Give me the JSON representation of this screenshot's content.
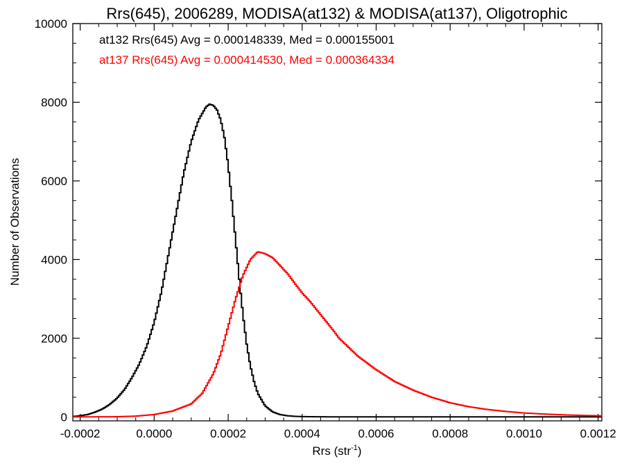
{
  "chart_data": {
    "type": "line",
    "title": "Rrs(645), 2006289, MODISA(at132) & MODISA(at137), Oligotrophic",
    "xlabel": "Rrs (str",
    "xlabel_sup": "-1",
    "xlabel_close": ")",
    "ylabel": "Number of Observations",
    "xlim": [
      -0.00022,
      0.00121
    ],
    "ylim": [
      -100,
      10000
    ],
    "xticks": [
      "-0.0002",
      "0.0000",
      "0.0002",
      "0.0004",
      "0.0006",
      "0.0008",
      "0.0010",
      "0.0012"
    ],
    "xtick_values": [
      -0.0002,
      0.0,
      0.0002,
      0.0004,
      0.0006,
      0.0008,
      0.001,
      0.0012
    ],
    "yticks": [
      "0",
      "2000",
      "4000",
      "6000",
      "8000",
      "10000"
    ],
    "ytick_values": [
      0,
      2000,
      4000,
      6000,
      8000,
      10000
    ],
    "grid": false,
    "annotations": [
      {
        "text": "at132 Rrs(645) Avg = 0.000148339, Med = 0.000155001",
        "color": "#000000"
      },
      {
        "text": "at137 Rrs(645) Avg = 0.000414530, Med = 0.000364334",
        "color": "#ff0000"
      }
    ],
    "series": [
      {
        "color": "#000000",
        "x": [
          -0.00022,
          -0.0002,
          -0.00018,
          -0.00016,
          -0.00014,
          -0.00012,
          -0.0001,
          -8e-05,
          -6e-05,
          -4e-05,
          -2e-05,
          0.0,
          2e-05,
          4e-05,
          6e-05,
          8e-05,
          0.0001,
          0.00012,
          0.00014,
          0.00015,
          0.00016,
          0.00017,
          0.00018,
          0.00019,
          0.0002,
          0.00021,
          0.00022,
          0.00023,
          0.00024,
          0.00025,
          0.00026,
          0.00027,
          0.00028,
          0.0003,
          0.00032,
          0.00034,
          0.00036,
          0.00038,
          0.0004,
          0.00045,
          0.0005
        ],
        "y": [
          10,
          30,
          60,
          120,
          200,
          320,
          480,
          700,
          1000,
          1350,
          1800,
          2400,
          3200,
          4200,
          5200,
          6200,
          7000,
          7550,
          7880,
          7950,
          7920,
          7800,
          7550,
          7100,
          6400,
          5500,
          4500,
          3500,
          2600,
          1850,
          1300,
          900,
          600,
          280,
          130,
          60,
          30,
          15,
          8,
          3,
          1
        ]
      },
      {
        "color": "#ff0000",
        "x": [
          -0.00022,
          -0.0001,
          -5e-05,
          0.0,
          5e-05,
          0.0001,
          0.00013,
          0.00016,
          0.00018,
          0.0002,
          0.00022,
          0.00024,
          0.00026,
          0.00028,
          0.0003,
          0.00032,
          0.00034,
          0.00036,
          0.00038,
          0.0004,
          0.00042,
          0.00045,
          0.00048,
          0.0005,
          0.00055,
          0.0006,
          0.00065,
          0.0007,
          0.00075,
          0.0008,
          0.00085,
          0.0009,
          0.00095,
          0.001,
          0.00105,
          0.0011,
          0.00115,
          0.0012,
          0.00121
        ],
        "y": [
          0,
          5,
          20,
          60,
          150,
          330,
          600,
          1100,
          1600,
          2300,
          3000,
          3600,
          4000,
          4200,
          4150,
          4050,
          3850,
          3650,
          3400,
          3150,
          2950,
          2600,
          2250,
          2000,
          1550,
          1200,
          900,
          680,
          500,
          360,
          260,
          190,
          140,
          100,
          75,
          55,
          40,
          30,
          25
        ]
      }
    ]
  }
}
